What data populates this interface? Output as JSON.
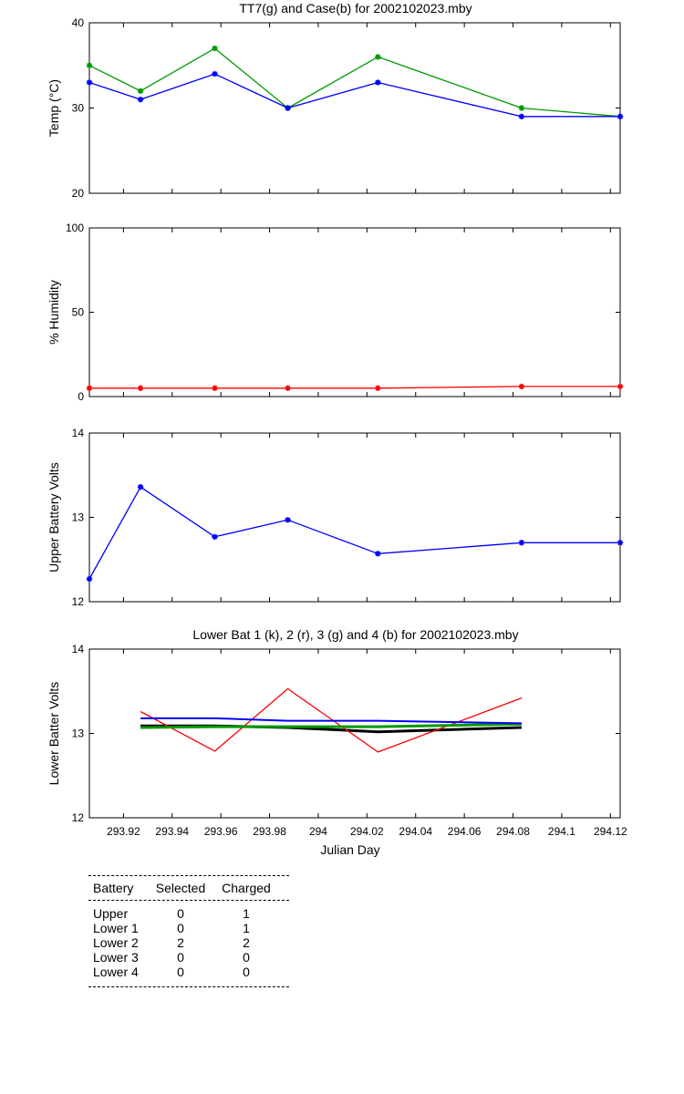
{
  "colors": {
    "green": "#009900",
    "blue": "#0000ff",
    "red": "#ff0000",
    "black": "#000000"
  },
  "chart_data": [
    {
      "type": "line",
      "title": "TT7(g) and Case(b) for 2002102023.mby",
      "xlabel": "",
      "ylabel": "Temp (°C)",
      "xlim": [
        293.906,
        294.124
      ],
      "ylim": [
        20,
        40
      ],
      "yticks": [
        20,
        30,
        40
      ],
      "x": [
        293.906,
        293.927,
        293.9575,
        293.9875,
        294.0245,
        294.0835,
        294.124
      ],
      "series": [
        {
          "color": "green",
          "marker": true,
          "values": [
            35,
            32,
            37,
            30,
            36,
            30,
            29
          ]
        },
        {
          "color": "blue",
          "marker": true,
          "values": [
            33,
            31,
            34,
            30,
            33,
            29,
            29
          ]
        }
      ]
    },
    {
      "type": "line",
      "title": "",
      "xlabel": "",
      "ylabel": "% Humidity",
      "xlim": [
        293.906,
        294.124
      ],
      "ylim": [
        0,
        100
      ],
      "yticks": [
        0,
        50,
        100
      ],
      "x": [
        293.906,
        293.927,
        293.9575,
        293.9875,
        294.0245,
        294.0835,
        294.124
      ],
      "series": [
        {
          "color": "red",
          "marker": true,
          "values": [
            5,
            5,
            5,
            5,
            5,
            6,
            6
          ]
        }
      ]
    },
    {
      "type": "line",
      "title": "",
      "xlabel": "",
      "ylabel": "Upper Battery Volts",
      "xlim": [
        293.906,
        294.124
      ],
      "ylim": [
        12,
        14
      ],
      "yticks": [
        12,
        13,
        14
      ],
      "x": [
        293.906,
        293.927,
        293.9575,
        293.9875,
        294.0245,
        294.0835,
        294.124
      ],
      "series": [
        {
          "color": "blue",
          "marker": true,
          "values": [
            12.27,
            13.36,
            12.77,
            12.97,
            12.57,
            12.7,
            12.7
          ]
        }
      ]
    },
    {
      "type": "line",
      "title": "Lower Bat 1 (k), 2 (r), 3 (g) and 4 (b) for 2002102023.mby",
      "xlabel": "Julian Day",
      "ylabel": "Lower Batter Volts",
      "xlim": [
        293.906,
        294.124
      ],
      "ylim": [
        12,
        14
      ],
      "yticks": [
        12,
        13,
        14
      ],
      "xticks": [
        293.92,
        293.94,
        293.96,
        293.98,
        294,
        294.02,
        294.04,
        294.06,
        294.08,
        294.1,
        294.12
      ],
      "xticklabels": [
        "293.92",
        "293.94",
        "293.96",
        "293.98",
        "294",
        "294.02",
        "294.04",
        "294.06",
        "294.08",
        "294.1",
        "294.12"
      ],
      "x": [
        293.927,
        293.9575,
        293.9875,
        294.0245,
        294.0835
      ],
      "series": [
        {
          "color": "black",
          "marker": false,
          "width": 3,
          "values": [
            13.09,
            13.09,
            13.07,
            13.02,
            13.07
          ]
        },
        {
          "color": "red",
          "marker": false,
          "width": 1.3,
          "values": [
            13.26,
            12.79,
            13.53,
            12.78,
            13.42
          ]
        },
        {
          "color": "green",
          "marker": false,
          "width": 3,
          "values": [
            13.07,
            13.08,
            13.08,
            13.08,
            13.11
          ]
        },
        {
          "color": "blue",
          "marker": false,
          "width": 2,
          "values": [
            13.18,
            13.18,
            13.15,
            13.15,
            13.12
          ]
        }
      ]
    }
  ],
  "table": {
    "headers": [
      "Battery",
      "Selected",
      "Charged"
    ],
    "rows": [
      {
        "battery": "Upper",
        "selected": "0",
        "charged": "1"
      },
      {
        "battery": "Lower 1",
        "selected": "0",
        "charged": "1"
      },
      {
        "battery": "Lower 2",
        "selected": "2",
        "charged": "2"
      },
      {
        "battery": "Lower 3",
        "selected": "0",
        "charged": "0"
      },
      {
        "battery": "Lower 4",
        "selected": "0",
        "charged": "0"
      }
    ]
  }
}
